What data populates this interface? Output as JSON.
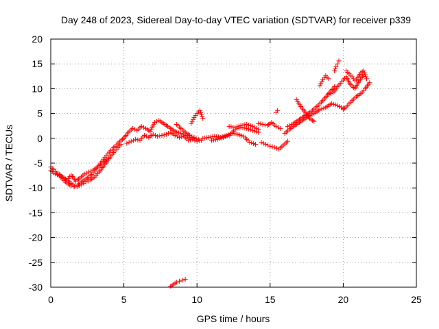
{
  "chart_data": {
    "type": "scatter",
    "title": "Day 248 of 2023, Sidereal Day-to-day VTEC variation (SDTVAR) for receiver p339",
    "xlabel": "GPS time / hours",
    "ylabel": "SDTVAR / TECUs",
    "xlim": [
      0,
      25
    ],
    "ylim": [
      -30,
      20
    ],
    "xticks": [
      0,
      5,
      10,
      15,
      20,
      25
    ],
    "yticks": [
      -30,
      -25,
      -20,
      -15,
      -10,
      -5,
      0,
      5,
      10,
      15,
      20
    ],
    "grid": true,
    "marker": "+",
    "color": "#ff0000",
    "series": [
      {
        "name": "track-a-morning-dip",
        "x": [
          0.0,
          0.2,
          0.4,
          0.6,
          0.8,
          1.0,
          1.2,
          1.4,
          1.6,
          1.8,
          2.0,
          2.2,
          2.4,
          2.6,
          2.8,
          3.0,
          3.2,
          3.4,
          3.6,
          3.8,
          4.0,
          4.2,
          4.4,
          4.6,
          4.8,
          5.0
        ],
        "y": [
          -5.8,
          -6.3,
          -7.0,
          -7.6,
          -8.2,
          -8.8,
          -9.2,
          -9.6,
          -9.8,
          -9.5,
          -9.0,
          -8.6,
          -8.2,
          -7.8,
          -7.3,
          -6.6,
          -5.8,
          -5.0,
          -4.2,
          -3.5,
          -2.8,
          -2.2,
          -1.6,
          -1.0,
          -0.4,
          0.0
        ]
      },
      {
        "name": "track-b-morning-dip",
        "x": [
          0.0,
          0.3,
          0.6,
          0.9,
          1.2,
          1.5,
          1.8,
          2.1,
          2.4,
          2.7,
          3.0,
          3.3,
          3.6,
          3.9,
          4.2,
          4.5,
          4.8
        ],
        "y": [
          -6.5,
          -7.2,
          -7.5,
          -8.0,
          -8.6,
          -9.3,
          -9.8,
          -9.3,
          -8.8,
          -8.4,
          -7.8,
          -6.8,
          -5.6,
          -4.4,
          -3.2,
          -2.2,
          -1.2
        ]
      },
      {
        "name": "track-c-morning",
        "x": [
          0.5,
          0.8,
          1.1,
          1.4,
          1.7,
          2.0,
          2.3,
          2.6,
          2.9,
          3.2,
          3.5,
          3.8
        ],
        "y": [
          -7.0,
          -7.8,
          -8.4,
          -7.4,
          -8.6,
          -8.0,
          -7.2,
          -6.8,
          -6.4,
          -5.8,
          -5.0,
          -4.3
        ]
      },
      {
        "name": "track-d-midday",
        "x": [
          5.0,
          5.3,
          5.6,
          5.9,
          6.2,
          6.5,
          6.8,
          7.1,
          7.4,
          7.7,
          8.0,
          8.3,
          8.6,
          8.9,
          9.2,
          9.5,
          9.8,
          10.1
        ],
        "y": [
          0.0,
          1.2,
          2.0,
          1.6,
          2.4,
          2.0,
          1.4,
          3.2,
          3.6,
          3.0,
          2.4,
          1.8,
          1.2,
          1.0,
          0.6,
          0.2,
          0.0,
          -0.2
        ]
      },
      {
        "name": "track-e-midday",
        "x": [
          5.2,
          5.5,
          5.8,
          6.1,
          6.4,
          6.7,
          7.0,
          7.3,
          7.6,
          7.9,
          8.2,
          8.5,
          8.8,
          9.1,
          9.4,
          9.7,
          10.0,
          10.3
        ],
        "y": [
          -1.0,
          -0.6,
          -0.2,
          -0.4,
          0.6,
          0.2,
          0.8,
          0.4,
          0.6,
          0.8,
          1.2,
          0.6,
          0.2,
          0.4,
          -0.4,
          -0.2,
          -0.6,
          -0.4
        ]
      },
      {
        "name": "track-f-midday-spike",
        "x": [
          9.6,
          9.8,
          10.0,
          10.2,
          10.4
        ],
        "y": [
          3.0,
          4.2,
          5.0,
          5.6,
          4.0
        ]
      },
      {
        "name": "track-g-afternoon",
        "x": [
          8.6,
          8.9,
          9.2,
          9.5,
          9.8
        ],
        "y": [
          2.8,
          2.0,
          1.2,
          0.6,
          0.2
        ]
      },
      {
        "name": "track-h-afternoon",
        "x": [
          10.4,
          10.8,
          11.2,
          11.6,
          12.0,
          12.4,
          12.8,
          13.2,
          13.6,
          14.0
        ],
        "y": [
          0.0,
          0.2,
          0.4,
          0.2,
          0.6,
          1.0,
          0.8,
          0.4,
          -0.8,
          -1.2
        ]
      },
      {
        "name": "track-i-afternoon",
        "x": [
          11.0,
          11.4,
          11.8,
          12.2,
          12.6,
          13.0,
          13.4,
          13.8,
          14.2
        ],
        "y": [
          -0.4,
          -0.2,
          0.2,
          0.6,
          1.8,
          2.2,
          2.0,
          1.6,
          1.2
        ]
      },
      {
        "name": "track-j-afternoon",
        "x": [
          12.2,
          12.6,
          13.0,
          13.4,
          13.8,
          14.2
        ],
        "y": [
          2.4,
          2.2,
          2.6,
          2.8,
          2.4,
          1.8
        ]
      },
      {
        "name": "track-k-afternoon-right",
        "x": [
          14.2,
          14.5,
          14.8,
          15.1,
          15.4,
          15.7
        ],
        "y": [
          3.0,
          2.8,
          2.6,
          3.2,
          2.4,
          2.0
        ]
      },
      {
        "name": "track-l-afternoon-right",
        "x": [
          14.4,
          14.7,
          15.0,
          15.3,
          15.6,
          15.9,
          16.2
        ],
        "y": [
          -0.8,
          -1.2,
          -1.6,
          -1.8,
          -2.2,
          -1.4,
          -0.6
        ]
      },
      {
        "name": "track-m-afternoon-right",
        "x": [
          15.4,
          15.5
        ],
        "y": [
          5.2,
          5.6
        ]
      },
      {
        "name": "track-n-evening-rise",
        "x": [
          16.0,
          16.4,
          16.8,
          17.2,
          17.6,
          18.0,
          18.4,
          18.8,
          19.2,
          19.6,
          20.0
        ],
        "y": [
          1.0,
          2.0,
          2.8,
          3.6,
          4.4,
          5.0,
          5.8,
          6.2,
          7.0,
          6.6,
          6.0
        ]
      },
      {
        "name": "track-o-evening-rise",
        "x": [
          16.2,
          16.6,
          17.0,
          17.4,
          17.8,
          18.2,
          18.6,
          19.0,
          19.4
        ],
        "y": [
          2.4,
          3.0,
          3.8,
          4.6,
          5.4,
          6.4,
          7.6,
          9.0,
          10.4
        ]
      },
      {
        "name": "track-p-evening-peak",
        "x": [
          18.4,
          18.6,
          18.8,
          19.0
        ],
        "y": [
          10.6,
          11.8,
          12.6,
          12.0
        ]
      },
      {
        "name": "track-q-evening-peak",
        "x": [
          19.4,
          19.5,
          19.6,
          19.7
        ],
        "y": [
          13.6,
          14.4,
          15.0,
          15.6
        ]
      },
      {
        "name": "track-r-evening-v",
        "x": [
          16.8,
          17.1,
          17.4,
          17.7,
          18.0
        ],
        "y": [
          7.8,
          6.4,
          5.2,
          4.0,
          3.4
        ]
      },
      {
        "name": "track-s-late",
        "x": [
          19.0,
          19.3,
          19.6,
          19.9,
          20.2,
          20.5,
          20.8,
          21.1,
          21.4
        ],
        "y": [
          8.8,
          9.2,
          10.4,
          11.4,
          12.4,
          10.8,
          10.0,
          11.6,
          12.8
        ]
      },
      {
        "name": "track-t-late",
        "x": [
          20.0,
          20.3,
          20.6,
          20.9,
          21.2,
          21.5,
          21.8
        ],
        "y": [
          5.8,
          6.6,
          7.6,
          8.4,
          9.0,
          10.0,
          11.2
        ]
      },
      {
        "name": "track-u-late",
        "x": [
          20.2,
          20.4,
          20.6,
          20.8,
          21.0,
          21.2,
          21.4,
          21.6
        ],
        "y": [
          13.6,
          13.0,
          12.4,
          11.6,
          12.2,
          13.2,
          13.6,
          12.0
        ]
      },
      {
        "name": "track-v-outlier",
        "x": [
          8.2,
          8.4,
          8.6,
          8.8,
          9.0,
          9.2
        ],
        "y": [
          -29.8,
          -29.4,
          -29.0,
          -28.8,
          -28.6,
          -28.4
        ]
      }
    ]
  }
}
